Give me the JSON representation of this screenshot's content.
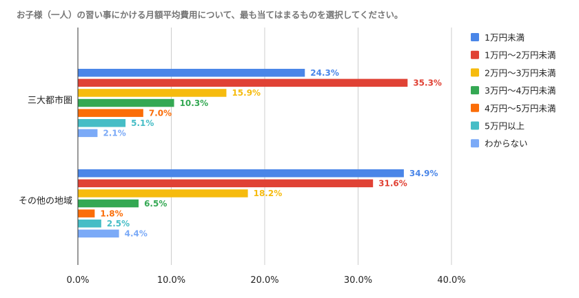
{
  "chart_data": {
    "type": "bar",
    "orientation": "horizontal",
    "title": "お子様（一人）の習い事にかける月額平均費用について、最も当てはまるものを選択してください。",
    "categories": [
      "三大都市圏",
      "その他の地域"
    ],
    "xlim": [
      0,
      40
    ],
    "x_ticks": [
      "0.0%",
      "10.0%",
      "20.0%",
      "30.0%",
      "40.0%"
    ],
    "grid": true,
    "legend_position": "right",
    "value_suffix": "%",
    "series": [
      {
        "name": "1万円未満",
        "color": "#4a86e8",
        "values": [
          24.3,
          34.9
        ]
      },
      {
        "name": "1万円〜2万円未満",
        "color": "#e04235",
        "values": [
          35.3,
          31.6
        ]
      },
      {
        "name": "2万円〜3万円未満",
        "color": "#f6bb0e",
        "values": [
          15.9,
          18.2
        ]
      },
      {
        "name": "3万円〜4万円未満",
        "color": "#34a853",
        "values": [
          10.3,
          6.5
        ]
      },
      {
        "name": "4万円〜5万円未満",
        "color": "#fb6d08",
        "values": [
          7.0,
          1.8
        ]
      },
      {
        "name": "5万円以上",
        "color": "#46bdc6",
        "values": [
          5.1,
          2.5
        ]
      },
      {
        "name": "わからない",
        "color": "#7baaf7",
        "values": [
          2.1,
          4.4
        ]
      }
    ]
  }
}
